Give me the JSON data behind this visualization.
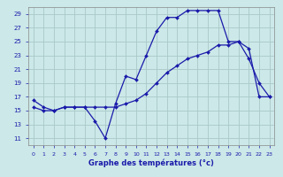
{
  "xlabel": "Graphe des températures (°c)",
  "background_color": "#cce8e8",
  "line_color": "#1a1aaa",
  "grid_color": "#aac8c8",
  "xlim": [
    -0.5,
    23.5
  ],
  "ylim": [
    10,
    30
  ],
  "yticks": [
    11,
    13,
    15,
    17,
    19,
    21,
    23,
    25,
    27,
    29
  ],
  "xticks": [
    0,
    1,
    2,
    3,
    4,
    5,
    6,
    7,
    8,
    9,
    10,
    11,
    12,
    13,
    14,
    15,
    16,
    17,
    18,
    19,
    20,
    21,
    22,
    23
  ],
  "series1_x": [
    0,
    1,
    2,
    3,
    4,
    5,
    6,
    7,
    8,
    9,
    10,
    11,
    12,
    13,
    14,
    15,
    16,
    17,
    18,
    19,
    20,
    21,
    22,
    23
  ],
  "series1_y": [
    16.5,
    15.5,
    15.0,
    15.5,
    15.5,
    15.5,
    13.5,
    11.0,
    16.0,
    20.0,
    19.5,
    23.0,
    26.5,
    28.5,
    28.5,
    29.5,
    29.5,
    29.5,
    29.5,
    25.0,
    25.0,
    22.5,
    19.0,
    17.0
  ],
  "series2_x": [
    0,
    1,
    2,
    3,
    4,
    5,
    6,
    7,
    8,
    9,
    10,
    11,
    12,
    13,
    14,
    15,
    16,
    17,
    18,
    19,
    20,
    21,
    22,
    23
  ],
  "series2_y": [
    15.5,
    15.0,
    15.0,
    15.5,
    15.5,
    15.5,
    15.5,
    15.5,
    15.5,
    16.0,
    16.5,
    17.5,
    19.0,
    20.5,
    21.5,
    22.5,
    23.0,
    23.5,
    24.5,
    24.5,
    25.0,
    24.0,
    17.0,
    17.0
  ]
}
